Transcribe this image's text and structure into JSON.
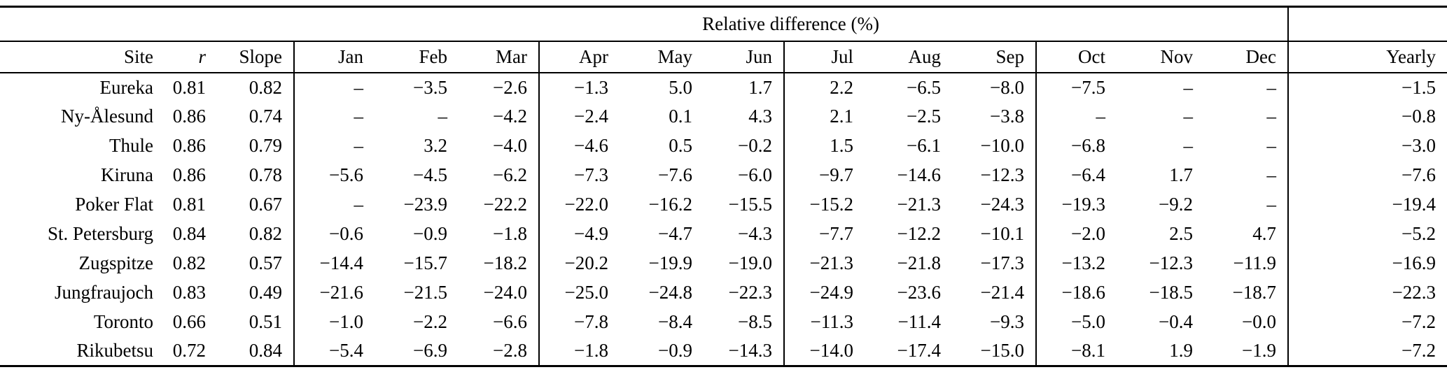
{
  "table": {
    "span_header": "Relative difference (%)",
    "columns": [
      "Site",
      "r",
      "Slope",
      "Jan",
      "Feb",
      "Mar",
      "Apr",
      "May",
      "Jun",
      "Jul",
      "Aug",
      "Sep",
      "Oct",
      "Nov",
      "Dec",
      "Yearly"
    ],
    "missing_marker": "–",
    "rows": [
      [
        "Eureka",
        "0.81",
        "0.82",
        "–",
        "−3.5",
        "−2.6",
        "−1.3",
        "5.0",
        "1.7",
        "2.2",
        "−6.5",
        "−8.0",
        "−7.5",
        "–",
        "–",
        "−1.5"
      ],
      [
        "Ny-Ålesund",
        "0.86",
        "0.74",
        "–",
        "–",
        "−4.2",
        "−2.4",
        "0.1",
        "4.3",
        "2.1",
        "−2.5",
        "−3.8",
        "–",
        "–",
        "–",
        "−0.8"
      ],
      [
        "Thule",
        "0.86",
        "0.79",
        "–",
        "3.2",
        "−4.0",
        "−4.6",
        "0.5",
        "−0.2",
        "1.5",
        "−6.1",
        "−10.0",
        "−6.8",
        "–",
        "–",
        "−3.0"
      ],
      [
        "Kiruna",
        "0.86",
        "0.78",
        "−5.6",
        "−4.5",
        "−6.2",
        "−7.3",
        "−7.6",
        "−6.0",
        "−9.7",
        "−14.6",
        "−12.3",
        "−6.4",
        "1.7",
        "–",
        "−7.6"
      ],
      [
        "Poker Flat",
        "0.81",
        "0.67",
        "–",
        "−23.9",
        "−22.2",
        "−22.0",
        "−16.2",
        "−15.5",
        "−15.2",
        "−21.3",
        "−24.3",
        "−19.3",
        "−9.2",
        "–",
        "−19.4"
      ],
      [
        "St. Petersburg",
        "0.84",
        "0.82",
        "−0.6",
        "−0.9",
        "−1.8",
        "−4.9",
        "−4.7",
        "−4.3",
        "−7.7",
        "−12.2",
        "−10.1",
        "−2.0",
        "2.5",
        "4.7",
        "−5.2"
      ],
      [
        "Zugspitze",
        "0.82",
        "0.57",
        "−14.4",
        "−15.7",
        "−18.2",
        "−20.2",
        "−19.9",
        "−19.0",
        "−21.3",
        "−21.8",
        "−17.3",
        "−13.2",
        "−12.3",
        "−11.9",
        "−16.9"
      ],
      [
        "Jungfraujoch",
        "0.83",
        "0.49",
        "−21.6",
        "−21.5",
        "−24.0",
        "−25.0",
        "−24.8",
        "−22.3",
        "−24.9",
        "−23.6",
        "−21.4",
        "−18.6",
        "−18.5",
        "−18.7",
        "−22.3"
      ],
      [
        "Toronto",
        "0.66",
        "0.51",
        "−1.0",
        "−2.2",
        "−6.6",
        "−7.8",
        "−8.4",
        "−8.5",
        "−11.3",
        "−11.4",
        "−9.3",
        "−5.0",
        "−0.4",
        "−0.0",
        "−7.2"
      ],
      [
        "Rikubetsu",
        "0.72",
        "0.84",
        "−5.4",
        "−6.9",
        "−2.8",
        "−1.8",
        "−0.9",
        "−14.3",
        "−14.0",
        "−17.4",
        "−15.0",
        "−8.1",
        "1.9",
        "−1.9",
        "−7.2"
      ]
    ]
  }
}
